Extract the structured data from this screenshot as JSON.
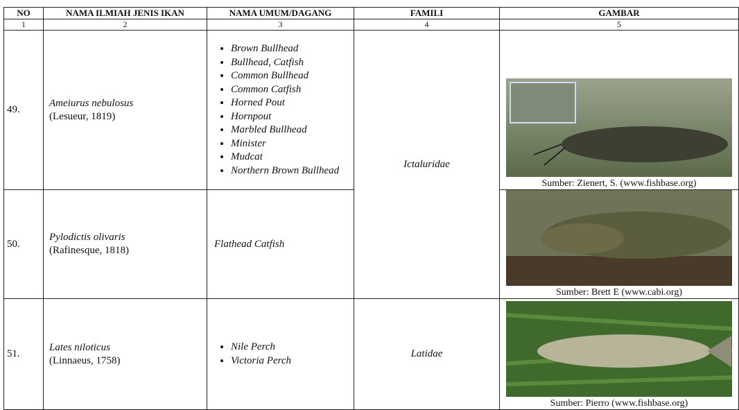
{
  "table": {
    "headers": [
      "NO",
      "NAMA ILMIAH JENIS IKAN",
      "NAMA UMUM/DAGANG",
      "FAMILI",
      "GAMBAR"
    ],
    "column_numbers": [
      "1",
      "2",
      "3",
      "4",
      "5"
    ],
    "rows": [
      {
        "no": "49.",
        "species": "Ameiurus nebulosus",
        "author": "(Lesueur, 1819)",
        "common_names": [
          "Brown Bullhead",
          "Bullhead, Catfish",
          "Common Bullhead",
          "Common Catfish",
          "Horned Pout",
          "Hornpout",
          "Marbled Bullhead",
          "Minister",
          "Mudcat",
          "Northern Brown Bullhead"
        ],
        "family": "Ictaluridae",
        "image_caption": "Sumber: Zienert, S. (www.fishbase.org)"
      },
      {
        "no": "50.",
        "species": "Pylodictis olivaris",
        "author": "(Rafinesque, 1818)",
        "common_names": "Flathead Catfish",
        "image_caption": "Sumber: Brett E (www.cabi.org)"
      },
      {
        "no": "51.",
        "species": "Lates niloticus",
        "author": "(Linnaeus, 1758)",
        "common_names": [
          "Nile Perch",
          "Victoria Perch"
        ],
        "family": "Latidae",
        "image_caption": "Sumber: Pierro (www.fishbase.org)"
      }
    ]
  }
}
